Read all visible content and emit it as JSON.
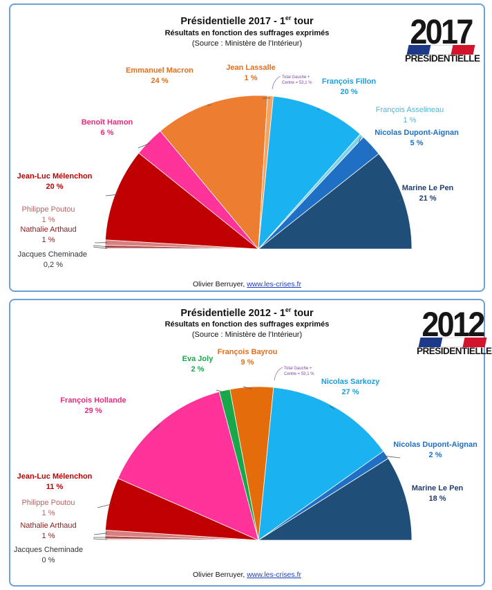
{
  "chart_data": [
    {
      "type": "pie",
      "variant": "half-donut (semicircle)",
      "title": "Présidentielle 2017 - 1",
      "title_sup": "er",
      "title_after": " tour",
      "subtitle": "Résultats en fonction des suffrages exprimés",
      "source": "(Source : Ministère de l'Intérieur)",
      "annotation": "Total Gauche + Centre = 53,1 %",
      "credit_text": "Olivier Berruyer, ",
      "credit_link": "www.les-crises.fr",
      "logo_year": "2017",
      "logo_text": "PRESIDENTIELLE",
      "slices": [
        {
          "name": "Jacques Cheminade",
          "label": "0,2 %",
          "value": 0.2,
          "color": "#e8b4b8",
          "text_color": "#333333"
        },
        {
          "name": "Nathalie Arthaud",
          "label": "1 %",
          "value": 0.6,
          "color": "#a84848",
          "text_color": "#8b1a1a"
        },
        {
          "name": "Philippe Poutou",
          "label": "1 %",
          "value": 1.1,
          "color": "#d88080",
          "text_color": "#c06060"
        },
        {
          "name": "Jean-Luc Mélenchon",
          "label": "20 %",
          "value": 19.6,
          "color": "#c00000",
          "text_color": "#c00000"
        },
        {
          "name": "Benoît Hamon",
          "label": "6 %",
          "value": 6.4,
          "color": "#ff3399",
          "text_color": "#e8297d"
        },
        {
          "name": "Emmanuel Macron",
          "label": "24 %",
          "value": 24.0,
          "color": "#ed7d31",
          "text_color": "#e0701e"
        },
        {
          "name": "Jean Lassalle",
          "label": "1 %",
          "value": 1.2,
          "color": "#f4a460",
          "text_color": "#e0701e"
        },
        {
          "name": "François Fillon",
          "label": "20 %",
          "value": 20.0,
          "color": "#1ab2f0",
          "text_color": "#1a9ee0"
        },
        {
          "name": "François Asselineau",
          "label": "1 %",
          "value": 0.9,
          "color": "#7fd3e8",
          "text_color": "#4bb8d8"
        },
        {
          "name": "Nicolas Dupont-Aignan",
          "label": "5 %",
          "value": 4.7,
          "color": "#1f6fc5",
          "text_color": "#1f6fc5"
        },
        {
          "name": "Marine Le Pen",
          "label": "21 %",
          "value": 21.3,
          "color": "#1f4e79",
          "text_color": "#1f3d6e"
        }
      ]
    },
    {
      "type": "pie",
      "variant": "half-donut (semicircle)",
      "title": "Présidentielle 2012 - 1",
      "title_sup": "er",
      "title_after": " tour",
      "subtitle": "Résultats en fonction des suffrages exprimés",
      "source": "(Source : Ministère de l'Intérieur)",
      "annotation": "Total Gauche + Centre = 53,1 %",
      "credit_text": "Olivier Berruyer, ",
      "credit_link": "www.les-crises.fr",
      "logo_year": "2012",
      "logo_text": "PRESIDENTIELLE",
      "slices": [
        {
          "name": "Jacques Cheminade",
          "label": "0 %",
          "value": 0.3,
          "color": "#e8b4b8",
          "text_color": "#333333"
        },
        {
          "name": "Nathalie Arthaud",
          "label": "1 %",
          "value": 0.6,
          "color": "#a84848",
          "text_color": "#8b1a1a"
        },
        {
          "name": "Philippe Poutou",
          "label": "1 %",
          "value": 1.2,
          "color": "#d88080",
          "text_color": "#c06060"
        },
        {
          "name": "Jean-Luc Mélenchon",
          "label": "11 %",
          "value": 11.1,
          "color": "#c00000",
          "text_color": "#c00000"
        },
        {
          "name": "François Hollande",
          "label": "29 %",
          "value": 28.6,
          "color": "#ff3399",
          "text_color": "#e8297d"
        },
        {
          "name": "Eva Joly",
          "label": "2 %",
          "value": 2.3,
          "color": "#18a84a",
          "text_color": "#18a84a"
        },
        {
          "name": "François Bayrou",
          "label": "9 %",
          "value": 9.1,
          "color": "#e46c0a",
          "text_color": "#e0701e"
        },
        {
          "name": "Nicolas Sarkozy",
          "label": "27 %",
          "value": 27.2,
          "color": "#1ab2f0",
          "text_color": "#1a9ee0"
        },
        {
          "name": "Nicolas Dupont-Aignan",
          "label": "2 %",
          "value": 1.8,
          "color": "#1f6fc5",
          "text_color": "#1f6fc5"
        },
        {
          "name": "Marine Le Pen",
          "label": "18 %",
          "value": 17.9,
          "color": "#1f4e79",
          "text_color": "#1f3d6e"
        }
      ]
    }
  ],
  "flag_colors": [
    "#1d3a8a",
    "#ffffff",
    "#d2142c"
  ]
}
